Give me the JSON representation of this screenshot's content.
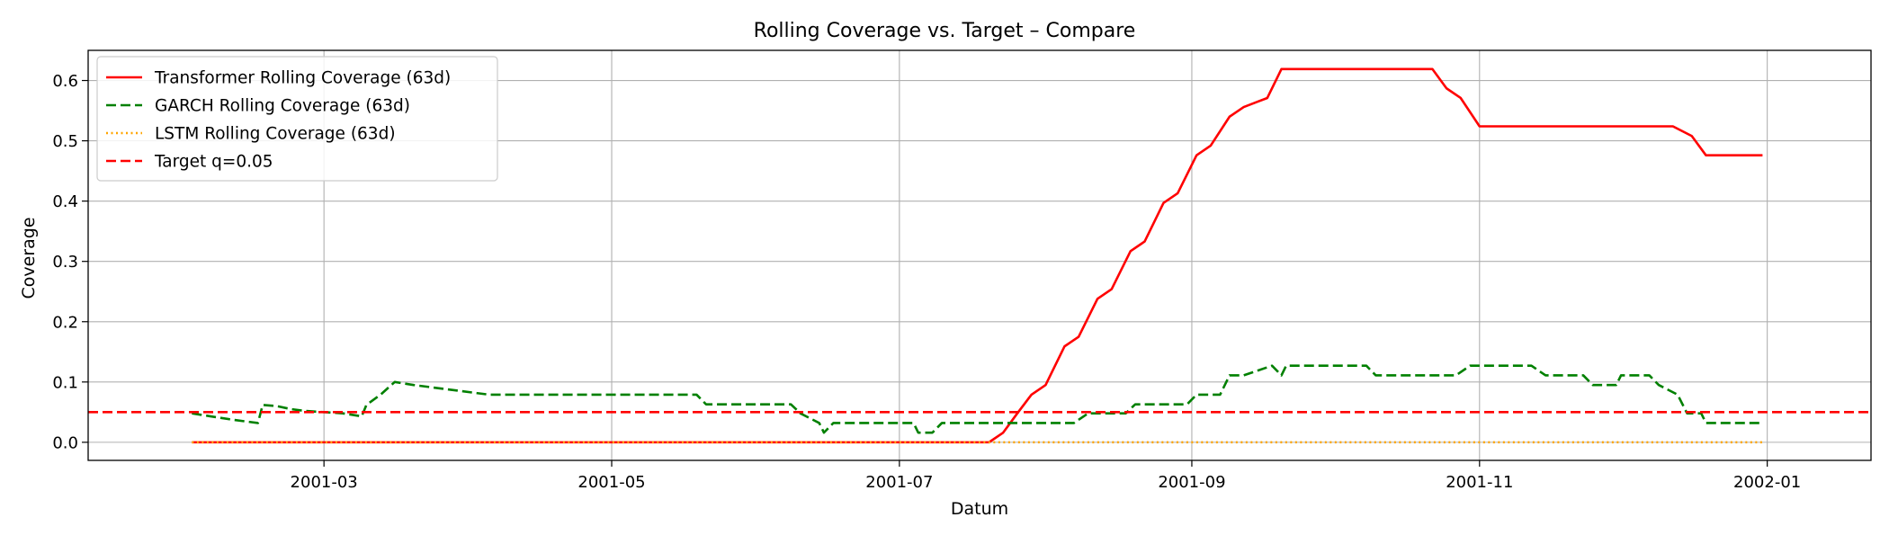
{
  "chart_data": {
    "type": "line",
    "title": "Rolling Coverage vs. Target – Compare",
    "xlabel": "Datum",
    "ylabel": "Coverage",
    "xlim": [
      "2001-01-10",
      "2002-01-23"
    ],
    "ylim": [
      -0.03,
      0.65
    ],
    "x_ticks": [
      "2001-03-01",
      "2001-05-01",
      "2001-07-01",
      "2001-09-01",
      "2001-11-01",
      "2002-01-01"
    ],
    "x_tick_labels": [
      "2001-03",
      "2001-05",
      "2001-07",
      "2001-09",
      "2001-11",
      "2002-01"
    ],
    "y_ticks": [
      0.0,
      0.1,
      0.2,
      0.3,
      0.4,
      0.5,
      0.6
    ],
    "y_tick_labels": [
      "0.0",
      "0.1",
      "0.2",
      "0.3",
      "0.4",
      "0.5",
      "0.6"
    ],
    "grid": true,
    "legend_position": "top-left",
    "series": [
      {
        "name": "Transformer Rolling Coverage (63d)",
        "color": "#ff0000",
        "style": "solid",
        "points": [
          [
            "2001-02-01",
            0.0
          ],
          [
            "2001-07-20",
            0.0
          ],
          [
            "2001-07-23",
            0.016
          ],
          [
            "2001-07-26",
            0.048
          ],
          [
            "2001-07-29",
            0.079
          ],
          [
            "2001-08-01",
            0.095
          ],
          [
            "2001-08-05",
            0.159
          ],
          [
            "2001-08-08",
            0.175
          ],
          [
            "2001-08-12",
            0.238
          ],
          [
            "2001-08-15",
            0.254
          ],
          [
            "2001-08-19",
            0.317
          ],
          [
            "2001-08-22",
            0.333
          ],
          [
            "2001-08-26",
            0.397
          ],
          [
            "2001-08-29",
            0.413
          ],
          [
            "2001-09-02",
            0.476
          ],
          [
            "2001-09-05",
            0.492
          ],
          [
            "2001-09-09",
            0.54
          ],
          [
            "2001-09-12",
            0.556
          ],
          [
            "2001-09-17",
            0.571
          ],
          [
            "2001-09-20",
            0.619
          ],
          [
            "2001-10-22",
            0.619
          ],
          [
            "2001-10-25",
            0.587
          ],
          [
            "2001-10-28",
            0.571
          ],
          [
            "2001-11-01",
            0.524
          ],
          [
            "2001-12-12",
            0.524
          ],
          [
            "2001-12-16",
            0.508
          ],
          [
            "2001-12-19",
            0.476
          ],
          [
            "2001-12-31",
            0.476
          ]
        ]
      },
      {
        "name": "GARCH Rolling Coverage (63d)",
        "color": "#008000",
        "style": "dashed",
        "points": [
          [
            "2001-02-01",
            0.048
          ],
          [
            "2001-02-05",
            0.043
          ],
          [
            "2001-02-10",
            0.037
          ],
          [
            "2001-02-15",
            0.032
          ],
          [
            "2001-02-16",
            0.062
          ],
          [
            "2001-02-19",
            0.06
          ],
          [
            "2001-02-22",
            0.055
          ],
          [
            "2001-02-25",
            0.052
          ],
          [
            "2001-03-01",
            0.05
          ],
          [
            "2001-03-05",
            0.048
          ],
          [
            "2001-03-09",
            0.043
          ],
          [
            "2001-03-10",
            0.062
          ],
          [
            "2001-03-13",
            0.079
          ],
          [
            "2001-03-16",
            0.1
          ],
          [
            "2001-03-20",
            0.095
          ],
          [
            "2001-03-25",
            0.09
          ],
          [
            "2001-03-30",
            0.085
          ],
          [
            "2001-04-05",
            0.079
          ],
          [
            "2001-05-19",
            0.079
          ],
          [
            "2001-05-21",
            0.063
          ],
          [
            "2001-06-08",
            0.063
          ],
          [
            "2001-06-10",
            0.048
          ],
          [
            "2001-06-14",
            0.032
          ],
          [
            "2001-06-15",
            0.016
          ],
          [
            "2001-06-17",
            0.032
          ],
          [
            "2001-07-04",
            0.032
          ],
          [
            "2001-07-05",
            0.016
          ],
          [
            "2001-07-08",
            0.016
          ],
          [
            "2001-07-10",
            0.032
          ],
          [
            "2001-08-07",
            0.032
          ],
          [
            "2001-08-10",
            0.048
          ],
          [
            "2001-08-18",
            0.048
          ],
          [
            "2001-08-20",
            0.063
          ],
          [
            "2001-08-31",
            0.063
          ],
          [
            "2001-09-02",
            0.079
          ],
          [
            "2001-09-07",
            0.079
          ],
          [
            "2001-09-09",
            0.111
          ],
          [
            "2001-09-12",
            0.111
          ],
          [
            "2001-09-18",
            0.127
          ],
          [
            "2001-09-20",
            0.111
          ],
          [
            "2001-09-21",
            0.127
          ],
          [
            "2001-10-08",
            0.127
          ],
          [
            "2001-10-10",
            0.111
          ],
          [
            "2001-10-27",
            0.111
          ],
          [
            "2001-10-30",
            0.127
          ],
          [
            "2001-11-12",
            0.127
          ],
          [
            "2001-11-15",
            0.111
          ],
          [
            "2001-11-23",
            0.111
          ],
          [
            "2001-11-25",
            0.095
          ],
          [
            "2001-11-30",
            0.095
          ],
          [
            "2001-12-01",
            0.111
          ],
          [
            "2001-12-07",
            0.111
          ],
          [
            "2001-12-09",
            0.095
          ],
          [
            "2001-12-13",
            0.079
          ],
          [
            "2001-12-15",
            0.048
          ],
          [
            "2001-12-18",
            0.048
          ],
          [
            "2001-12-19",
            0.032
          ],
          [
            "2001-12-31",
            0.032
          ]
        ]
      },
      {
        "name": "LSTM Rolling Coverage (63d)",
        "color": "#ffa500",
        "style": "dotted",
        "points": [
          [
            "2001-02-01",
            0.0
          ],
          [
            "2001-12-31",
            0.0
          ]
        ]
      },
      {
        "name": "Target q=0.05",
        "color": "#ff0000",
        "style": "dashed",
        "hline": 0.05
      }
    ]
  }
}
